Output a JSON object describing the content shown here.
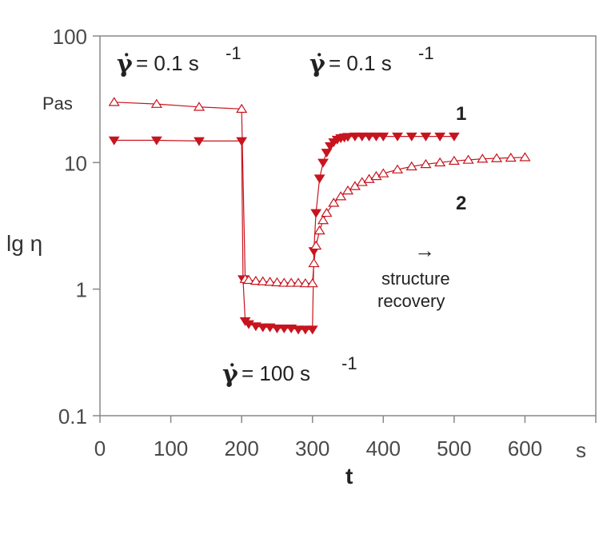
{
  "chart_data": {
    "type": "scatter",
    "title": "",
    "xlabel": "t",
    "x_unit": "s",
    "ylabel": "lg η",
    "y_unit": "Pas",
    "xlim": [
      0,
      700
    ],
    "ylim": [
      0.1,
      100
    ],
    "y_scale": "log",
    "x_ticks": [
      0,
      100,
      200,
      300,
      400,
      500,
      600
    ],
    "y_ticks": [
      0.1,
      1,
      10,
      100
    ],
    "x_tick_labels": [
      "0",
      "100",
      "200",
      "300",
      "400",
      "500",
      "600"
    ],
    "y_tick_labels": [
      "0.1",
      "1",
      "10",
      "100"
    ],
    "grid": false,
    "colors": {
      "series": "#c8141e",
      "axis": "#888888"
    },
    "annotations": {
      "shear_low_1_symbol": "γ̇",
      "shear_low_1_text": " = 0.1 s",
      "shear_low_1_exp": "-1",
      "shear_low_2_symbol": "γ̇",
      "shear_low_2_text": " = 0.1 s",
      "shear_low_2_exp": "-1",
      "shear_high_symbol": "γ̇",
      "shear_high_text": " = 100 s",
      "shear_high_exp": "-1",
      "arrow": "→",
      "recovery_line1": "structure",
      "recovery_line2": "recovery"
    },
    "series": [
      {
        "name": "1",
        "marker": "filled-triangle-down",
        "x": [
          20,
          80,
          140,
          200,
          202,
          205,
          210,
          220,
          230,
          240,
          250,
          260,
          270,
          280,
          290,
          300,
          302,
          305,
          310,
          315,
          320,
          325,
          330,
          335,
          340,
          345,
          350,
          360,
          370,
          380,
          390,
          400,
          420,
          440,
          460,
          480,
          500
        ],
        "y": [
          15,
          15,
          14.8,
          14.8,
          1.2,
          0.56,
          0.53,
          0.51,
          0.5,
          0.5,
          0.49,
          0.49,
          0.49,
          0.48,
          0.48,
          0.48,
          2.0,
          4.0,
          7.5,
          10.0,
          12.0,
          13.5,
          14.5,
          15.2,
          15.6,
          15.8,
          16.0,
          16.1,
          16.1,
          16.1,
          16.1,
          16.1,
          16.1,
          16.1,
          16.1,
          16.1,
          16.1
        ]
      },
      {
        "name": "2",
        "marker": "open-triangle-up",
        "x": [
          20,
          80,
          140,
          200,
          205,
          210,
          220,
          230,
          240,
          250,
          260,
          270,
          280,
          290,
          300,
          302,
          305,
          310,
          315,
          320,
          330,
          340,
          350,
          360,
          370,
          380,
          390,
          400,
          420,
          440,
          460,
          480,
          500,
          520,
          540,
          560,
          580,
          600
        ],
        "y": [
          30,
          29,
          27.5,
          26.5,
          1.2,
          1.18,
          1.16,
          1.15,
          1.14,
          1.13,
          1.12,
          1.12,
          1.12,
          1.11,
          1.11,
          1.6,
          2.2,
          2.9,
          3.5,
          4.0,
          4.8,
          5.4,
          6.0,
          6.5,
          7.0,
          7.4,
          7.8,
          8.2,
          8.8,
          9.3,
          9.7,
          10.0,
          10.3,
          10.5,
          10.7,
          10.8,
          10.9,
          11.0
        ]
      }
    ]
  }
}
